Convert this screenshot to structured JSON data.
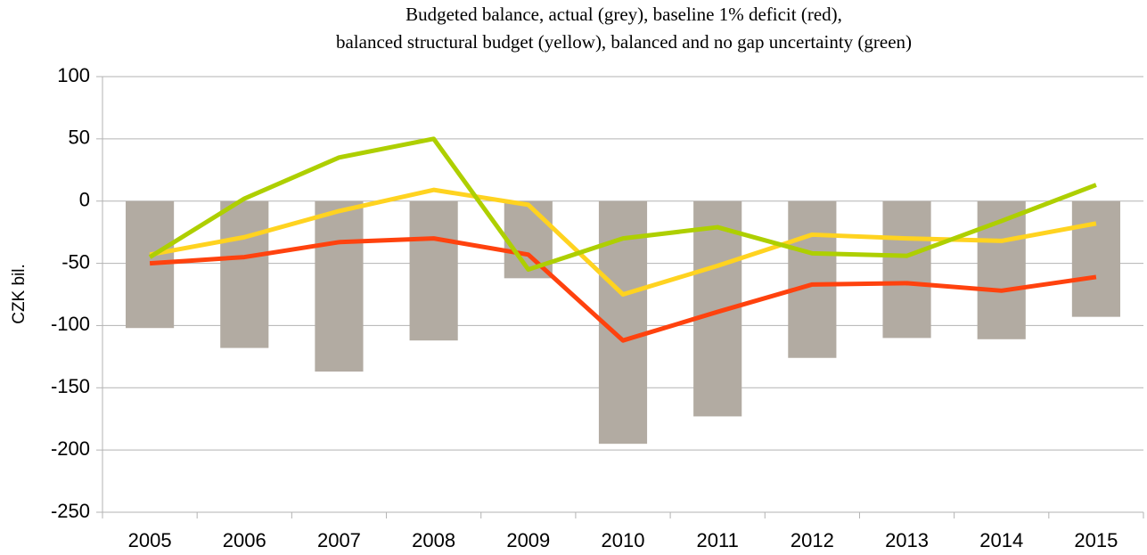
{
  "chart_data": {
    "type": "bar",
    "title": [
      "Budgeted balance, actual (grey), baseline 1% deficit (red),",
      "balanced structural budget (yellow), balanced and no gap uncertainty (green)"
    ],
    "ylabel": "CZK bil.",
    "categories": [
      "2005",
      "2006",
      "2007",
      "2008",
      "2009",
      "2010",
      "2011",
      "2012",
      "2013",
      "2014",
      "2015"
    ],
    "series": [
      {
        "type": "bar",
        "color": "#b2aba2",
        "values": [
          -102,
          -118,
          -137,
          -112,
          -62,
          -195,
          -173,
          -126,
          -110,
          -111,
          -93
        ]
      },
      {
        "type": "line",
        "color": "#ff420e",
        "values": [
          -50,
          -45,
          -33,
          -30,
          -43,
          -112,
          -89,
          -67,
          -66,
          -72,
          -61
        ]
      },
      {
        "type": "line",
        "color": "#ffd320",
        "values": [
          -43,
          -29,
          -8,
          9,
          -3,
          -75,
          -52,
          -27,
          -30,
          -32,
          -18
        ]
      },
      {
        "type": "line",
        "color": "#aecf00",
        "values": [
          -45,
          2,
          35,
          50,
          -55,
          -30,
          -21,
          -42,
          -44,
          -16,
          13
        ]
      }
    ],
    "ylim": [
      -250,
      100
    ],
    "yticks": [
      -250,
      -200,
      -150,
      -100,
      -50,
      0,
      50,
      100
    ],
    "grid": true
  }
}
